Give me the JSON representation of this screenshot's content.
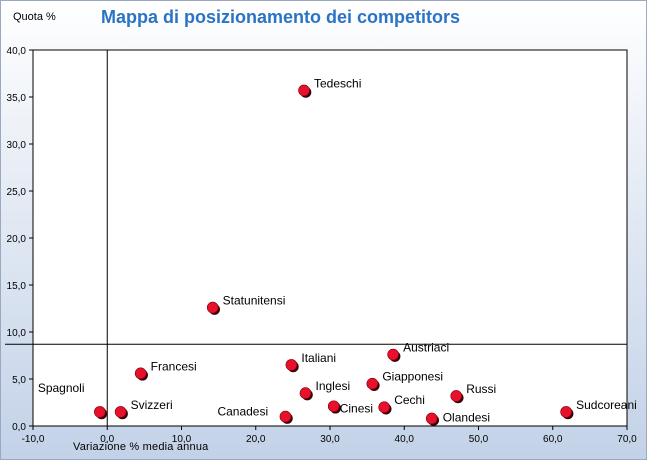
{
  "chart_data": {
    "type": "scatter",
    "title": "Mappa di posizionamento dei competitors",
    "ylabel": "Quota  %",
    "xlabel": "Variazione % media annua",
    "xlim": [
      -10,
      70
    ],
    "ylim": [
      0,
      40
    ],
    "x_ticks": [
      "-10,0",
      "0,0",
      "10,0",
      "20,0",
      "30,0",
      "40,0",
      "50,0",
      "60,0",
      "70,0"
    ],
    "y_ticks": [
      "0,0",
      "5,0",
      "10,0",
      "15,0",
      "20,0",
      "25,0",
      "30,0",
      "35,0",
      "40,0"
    ],
    "reference_lines": {
      "x": 0,
      "y": 8.7
    },
    "marker_color": "#e8102a",
    "grid": false,
    "points": [
      {
        "label": "Tedeschi",
        "x": 26.5,
        "y": 35.7
      },
      {
        "label": "Statunitensi",
        "x": 14.2,
        "y": 12.6
      },
      {
        "label": "Italiani",
        "x": 24.8,
        "y": 6.5
      },
      {
        "label": "Austriaci",
        "x": 38.5,
        "y": 7.6
      },
      {
        "label": "Francesi",
        "x": 4.5,
        "y": 5.6
      },
      {
        "label": "Inglesi",
        "x": 26.7,
        "y": 3.5
      },
      {
        "label": "Giapponesi",
        "x": 35.7,
        "y": 4.5
      },
      {
        "label": "Russi",
        "x": 47.0,
        "y": 3.2
      },
      {
        "label": "Spagnoli",
        "x": -1.0,
        "y": 1.5
      },
      {
        "label": "Svizzeri",
        "x": 1.8,
        "y": 1.5
      },
      {
        "label": "Canadesi",
        "x": 24.0,
        "y": 1.0
      },
      {
        "label": "Cinesi",
        "x": 30.5,
        "y": 2.1
      },
      {
        "label": "Cechi",
        "x": 37.3,
        "y": 2.0
      },
      {
        "label": "Olandesi",
        "x": 43.7,
        "y": 0.8
      },
      {
        "label": "Sudcoreani",
        "x": 61.8,
        "y": 1.5
      }
    ]
  }
}
